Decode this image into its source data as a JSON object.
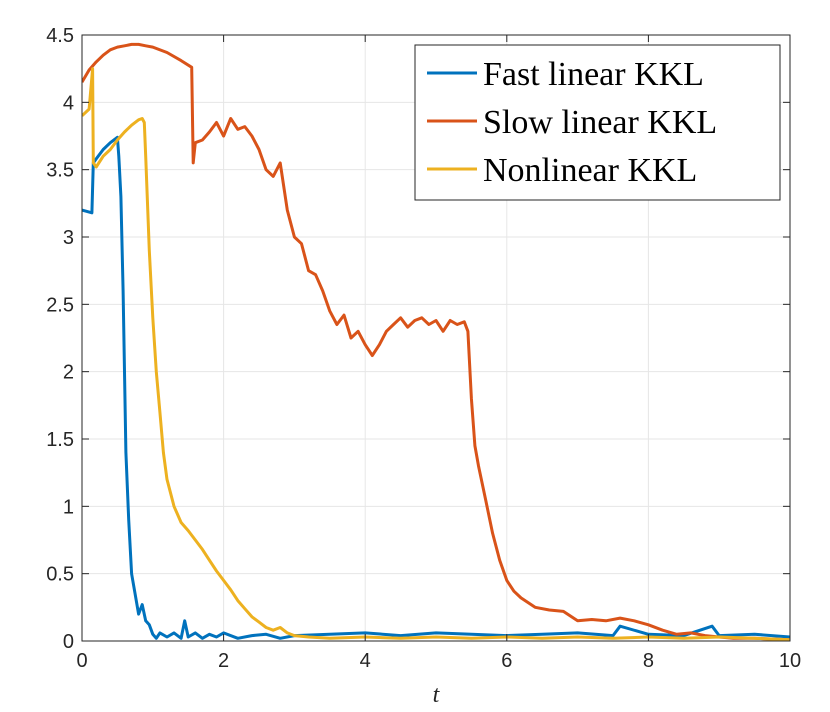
{
  "chart_data": {
    "type": "line",
    "title": "",
    "xlabel": "t",
    "ylabel": "",
    "xlim": [
      0,
      10
    ],
    "ylim": [
      0,
      4.5
    ],
    "xticks": [
      0,
      2,
      4,
      6,
      8,
      10
    ],
    "xtick_labels": [
      "0",
      "2",
      "4",
      "6",
      "8",
      "10"
    ],
    "yticks": [
      0,
      0.5,
      1,
      1.5,
      2,
      2.5,
      3,
      3.5,
      4,
      4.5
    ],
    "ytick_labels": [
      "0",
      "0.5",
      "1",
      "1.5",
      "2",
      "2.5",
      "3",
      "3.5",
      "4",
      "4.5"
    ],
    "grid": true,
    "legend_position": "top-right",
    "series": [
      {
        "name": "Fast linear KKL",
        "color": "#0072BD",
        "x": [
          0,
          0.14,
          0.16,
          0.2,
          0.3,
          0.4,
          0.5,
          0.52,
          0.55,
          0.58,
          0.62,
          0.66,
          0.7,
          0.75,
          0.8,
          0.85,
          0.9,
          0.95,
          1.0,
          1.05,
          1.1,
          1.2,
          1.3,
          1.4,
          1.45,
          1.5,
          1.6,
          1.7,
          1.8,
          1.9,
          2.0,
          2.2,
          2.4,
          2.6,
          2.8,
          3.0,
          3.5,
          4.0,
          4.5,
          5.0,
          5.5,
          6.0,
          6.5,
          7.0,
          7.5,
          7.6,
          8.0,
          8.5,
          8.9,
          9.0,
          9.5,
          10.0
        ],
        "y": [
          3.2,
          3.18,
          3.55,
          3.58,
          3.65,
          3.7,
          3.74,
          3.6,
          3.3,
          2.6,
          1.4,
          0.9,
          0.5,
          0.35,
          0.2,
          0.27,
          0.15,
          0.12,
          0.05,
          0.02,
          0.06,
          0.03,
          0.06,
          0.02,
          0.15,
          0.03,
          0.06,
          0.02,
          0.05,
          0.03,
          0.06,
          0.02,
          0.04,
          0.05,
          0.02,
          0.04,
          0.05,
          0.06,
          0.04,
          0.06,
          0.05,
          0.04,
          0.05,
          0.06,
          0.04,
          0.11,
          0.05,
          0.04,
          0.11,
          0.04,
          0.05,
          0.03
        ]
      },
      {
        "name": "Slow linear KKL",
        "color": "#D95319",
        "x": [
          0,
          0.1,
          0.2,
          0.3,
          0.4,
          0.5,
          0.6,
          0.7,
          0.8,
          0.9,
          1.0,
          1.2,
          1.4,
          1.55,
          1.57,
          1.6,
          1.7,
          1.8,
          1.9,
          2.0,
          2.1,
          2.2,
          2.3,
          2.4,
          2.5,
          2.6,
          2.7,
          2.8,
          2.9,
          3.0,
          3.1,
          3.2,
          3.3,
          3.4,
          3.5,
          3.6,
          3.7,
          3.8,
          3.9,
          4.0,
          4.1,
          4.2,
          4.3,
          4.4,
          4.5,
          4.6,
          4.7,
          4.8,
          4.9,
          5.0,
          5.1,
          5.2,
          5.3,
          5.4,
          5.45,
          5.5,
          5.55,
          5.6,
          5.7,
          5.8,
          5.9,
          6.0,
          6.1,
          6.2,
          6.4,
          6.6,
          6.8,
          7.0,
          7.2,
          7.4,
          7.6,
          7.8,
          8.0,
          8.2,
          8.4,
          8.6,
          8.8,
          9.0,
          9.2,
          9.5,
          10.0
        ],
        "y": [
          4.15,
          4.24,
          4.3,
          4.35,
          4.39,
          4.41,
          4.42,
          4.43,
          4.43,
          4.42,
          4.41,
          4.37,
          4.31,
          4.26,
          3.55,
          3.7,
          3.72,
          3.78,
          3.85,
          3.75,
          3.88,
          3.8,
          3.82,
          3.75,
          3.65,
          3.5,
          3.45,
          3.55,
          3.2,
          3.0,
          2.95,
          2.75,
          2.72,
          2.6,
          2.45,
          2.35,
          2.42,
          2.25,
          2.3,
          2.2,
          2.12,
          2.2,
          2.3,
          2.35,
          2.4,
          2.33,
          2.38,
          2.4,
          2.35,
          2.38,
          2.3,
          2.38,
          2.35,
          2.37,
          2.3,
          1.8,
          1.45,
          1.3,
          1.05,
          0.8,
          0.6,
          0.45,
          0.37,
          0.32,
          0.25,
          0.23,
          0.22,
          0.15,
          0.16,
          0.15,
          0.17,
          0.15,
          0.12,
          0.08,
          0.05,
          0.06,
          0.04,
          0.03,
          0.02,
          0.02,
          0.01
        ]
      },
      {
        "name": "Nonlinear KKL",
        "color": "#EDB120",
        "x": [
          0,
          0.1,
          0.15,
          0.16,
          0.2,
          0.3,
          0.4,
          0.5,
          0.6,
          0.7,
          0.8,
          0.85,
          0.88,
          0.9,
          0.95,
          1.0,
          1.05,
          1.1,
          1.15,
          1.2,
          1.3,
          1.4,
          1.5,
          1.6,
          1.7,
          1.8,
          1.9,
          2.0,
          2.1,
          2.2,
          2.3,
          2.4,
          2.5,
          2.6,
          2.7,
          2.8,
          2.9,
          3.0,
          3.2,
          3.5,
          4.0,
          4.5,
          5.0,
          5.5,
          6.0,
          6.5,
          7.0,
          7.5,
          8.0,
          8.5,
          9.0,
          9.5,
          10.0
        ],
        "y": [
          3.9,
          3.95,
          4.25,
          3.55,
          3.52,
          3.6,
          3.65,
          3.72,
          3.78,
          3.83,
          3.87,
          3.88,
          3.85,
          3.6,
          2.9,
          2.4,
          2.0,
          1.7,
          1.4,
          1.2,
          1.0,
          0.88,
          0.82,
          0.75,
          0.68,
          0.6,
          0.52,
          0.45,
          0.38,
          0.3,
          0.24,
          0.18,
          0.14,
          0.1,
          0.08,
          0.1,
          0.06,
          0.04,
          0.03,
          0.02,
          0.03,
          0.02,
          0.03,
          0.02,
          0.03,
          0.02,
          0.03,
          0.02,
          0.03,
          0.02,
          0.03,
          0.02,
          0.01
        ]
      }
    ]
  }
}
